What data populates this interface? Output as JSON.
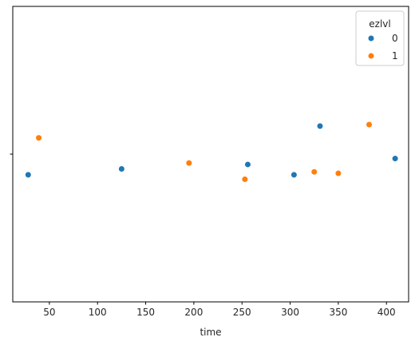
{
  "chart_data": {
    "type": "scatter",
    "title": "",
    "xlabel": "time",
    "ylabel": "",
    "xlim": [
      12,
      423
    ],
    "xticks": [
      50,
      100,
      150,
      200,
      250,
      300,
      350,
      400
    ],
    "grid": false,
    "legend": {
      "title": "ezlvl",
      "placement": "top-right",
      "entries": [
        {
          "label": "0",
          "color": "#1f77b4"
        },
        {
          "label": "1",
          "color": "#ff7f0e"
        }
      ]
    },
    "series": [
      {
        "name": "0",
        "color": "#1f77b4",
        "points": [
          {
            "x": 28,
            "jitter": -0.14
          },
          {
            "x": 125,
            "jitter": -0.1
          },
          {
            "x": 256,
            "jitter": -0.07
          },
          {
            "x": 304,
            "jitter": -0.14
          },
          {
            "x": 331,
            "jitter": 0.19
          },
          {
            "x": 409,
            "jitter": -0.03
          }
        ]
      },
      {
        "name": "1",
        "color": "#ff7f0e",
        "points": [
          {
            "x": 39,
            "jitter": 0.11
          },
          {
            "x": 195,
            "jitter": -0.06
          },
          {
            "x": 253,
            "jitter": -0.17
          },
          {
            "x": 325,
            "jitter": -0.12
          },
          {
            "x": 350,
            "jitter": -0.13
          },
          {
            "x": 382,
            "jitter": 0.2
          }
        ]
      }
    ]
  }
}
